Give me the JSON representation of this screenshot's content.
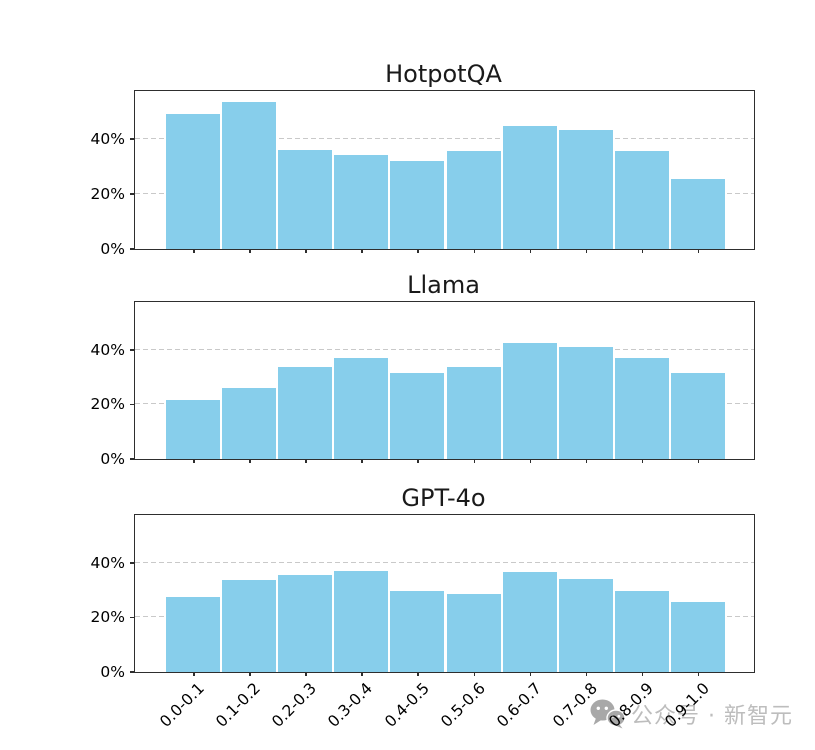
{
  "watermark": {
    "label": "公众号 · 新智元",
    "icon": "wechat-icon"
  },
  "colors": {
    "bar_fill": "#87CEEB",
    "bar_edge": "#ffffff",
    "grid": "#c9c9c9",
    "spine": "#2e2e2e",
    "tick_text": "#000000",
    "title_text": "#1a1a1a",
    "watermark_text": "#bdbdbd",
    "watermark_icon": "#a8a8a8"
  },
  "chart_data": [
    {
      "type": "bar",
      "title": "HotpotQA",
      "categories": [
        "0.0-0.1",
        "0.1-0.2",
        "0.2-0.3",
        "0.3-0.4",
        "0.4-0.5",
        "0.5-0.6",
        "0.6-0.7",
        "0.7-0.8",
        "0.8-0.9",
        "0.9-1.0"
      ],
      "values": [
        49.5,
        54,
        36.5,
        34.5,
        32.5,
        36,
        45,
        43.5,
        36,
        26
      ],
      "xlabel": "",
      "ylabel": "",
      "ylim": [
        0,
        57.5
      ],
      "yticks": [
        {
          "value": 0,
          "label": "0%"
        },
        {
          "value": 20,
          "label": "20%"
        },
        {
          "value": 40,
          "label": "40%"
        }
      ],
      "gridlines": [
        20,
        40
      ],
      "grid_style": "dashed-horizontal",
      "legend": "none",
      "show_x_tick_labels": false
    },
    {
      "type": "bar",
      "title": "Llama",
      "categories": [
        "0.0-0.1",
        "0.1-0.2",
        "0.2-0.3",
        "0.3-0.4",
        "0.4-0.5",
        "0.5-0.6",
        "0.6-0.7",
        "0.7-0.8",
        "0.8-0.9",
        "0.9-1.0"
      ],
      "values": [
        22,
        26.5,
        34,
        37.5,
        32,
        34,
        43,
        41.5,
        37.5,
        32
      ],
      "xlabel": "",
      "ylabel": "",
      "ylim": [
        0,
        57.5
      ],
      "yticks": [
        {
          "value": 0,
          "label": "0%"
        },
        {
          "value": 20,
          "label": "20%"
        },
        {
          "value": 40,
          "label": "40%"
        }
      ],
      "gridlines": [
        20,
        40
      ],
      "grid_style": "dashed-horizontal",
      "legend": "none",
      "show_x_tick_labels": false
    },
    {
      "type": "bar",
      "title": "GPT-4o",
      "categories": [
        "0.0-0.1",
        "0.1-0.2",
        "0.2-0.3",
        "0.3-0.4",
        "0.4-0.5",
        "0.5-0.6",
        "0.6-0.7",
        "0.7-0.8",
        "0.8-0.9",
        "0.9-1.0"
      ],
      "values": [
        28,
        34,
        36,
        37.5,
        30,
        29,
        37,
        34.5,
        30,
        26
      ],
      "xlabel": "",
      "ylabel": "",
      "ylim": [
        0,
        57.5
      ],
      "yticks": [
        {
          "value": 0,
          "label": "0%"
        },
        {
          "value": 20,
          "label": "20%"
        },
        {
          "value": 40,
          "label": "40%"
        }
      ],
      "gridlines": [
        20,
        40
      ],
      "grid_style": "dashed-horizontal",
      "legend": "none",
      "show_x_tick_labels": true
    }
  ]
}
